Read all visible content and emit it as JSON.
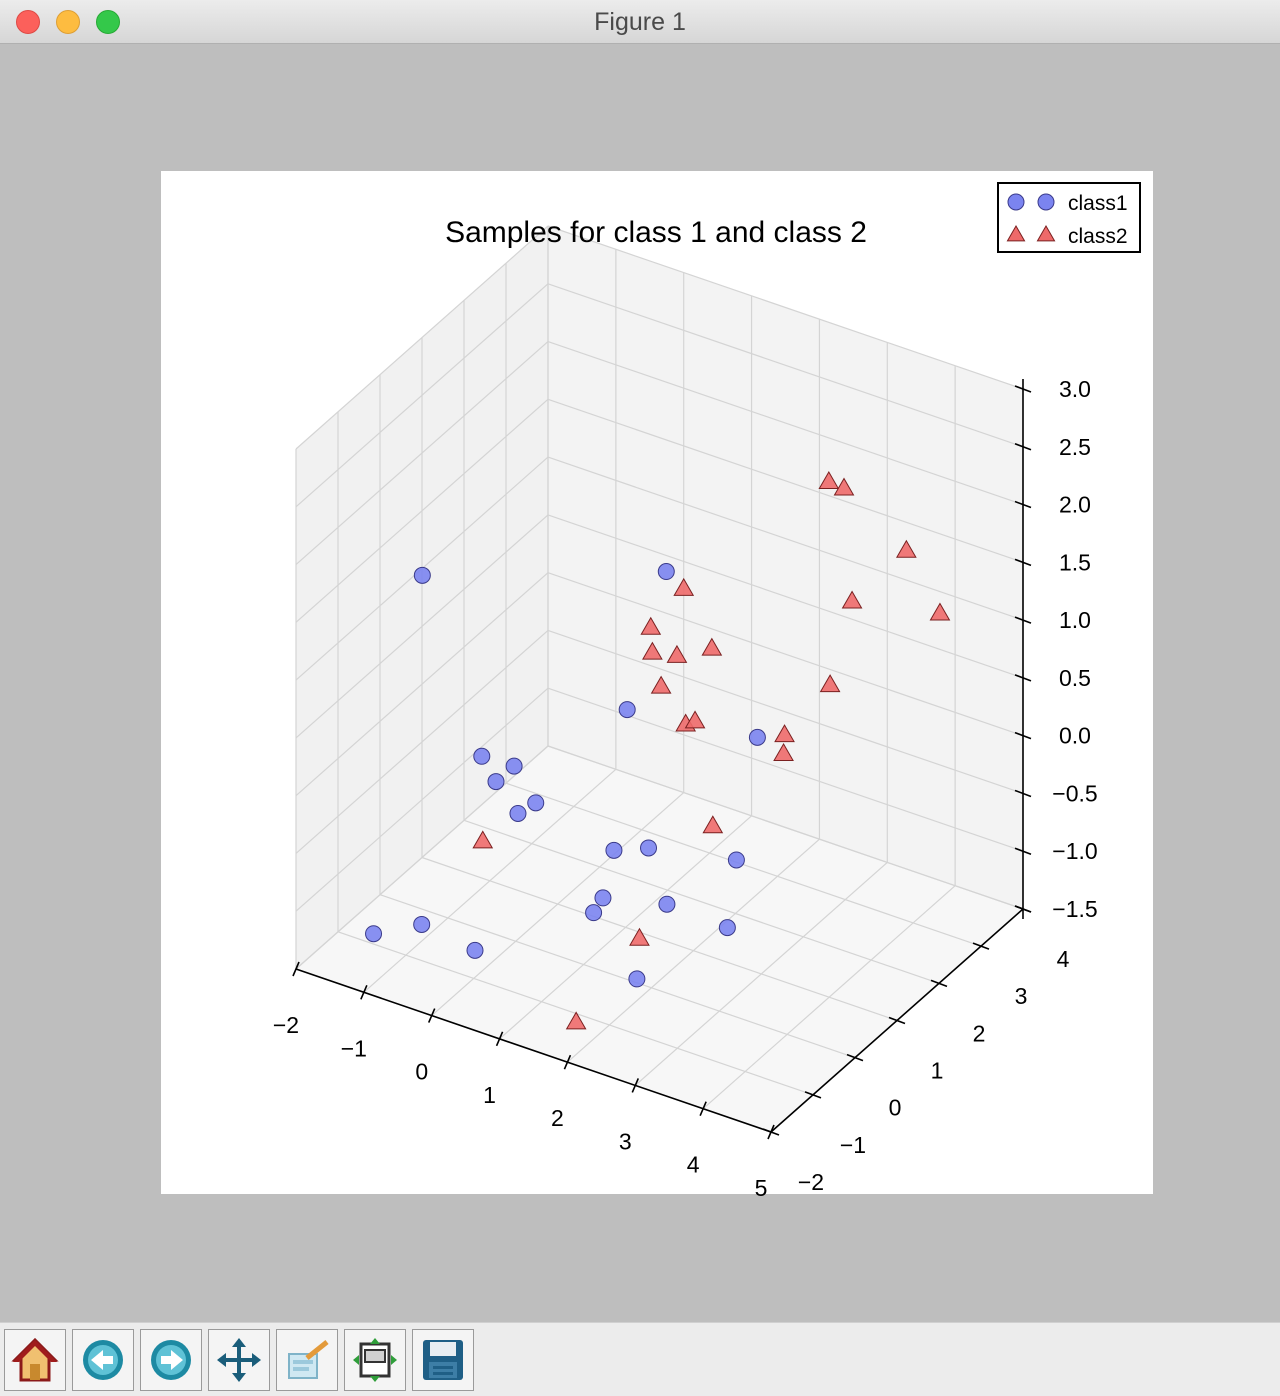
{
  "window": {
    "title": "Figure 1"
  },
  "toolbar": [
    {
      "name": "home-button",
      "icon": "home-icon"
    },
    {
      "name": "back-button",
      "icon": "back-arrow-icon"
    },
    {
      "name": "forward-button",
      "icon": "forward-arrow-icon"
    },
    {
      "name": "pan-button",
      "icon": "pan-arrows-icon"
    },
    {
      "name": "zoom-button",
      "icon": "zoom-rect-icon"
    },
    {
      "name": "subplots-button",
      "icon": "configure-subplots-icon"
    },
    {
      "name": "save-button",
      "icon": "save-floppy-icon"
    }
  ],
  "chart_data": {
    "type": "scatter",
    "title": "Samples for class 1 and class 2",
    "legend_position": "top-right",
    "grid": true,
    "xlim": [
      -2,
      5
    ],
    "ylim": [
      -2,
      4
    ],
    "zlim": [
      -1.5,
      3.0
    ],
    "x_ticks": [
      "−2",
      "−1",
      "0",
      "1",
      "2",
      "3",
      "4",
      "5"
    ],
    "y_ticks": [
      "−2",
      "−1",
      "0",
      "1",
      "2",
      "3",
      "4"
    ],
    "z_ticks": [
      "−1.5",
      "−1.0",
      "−0.5",
      "0.0",
      "0.5",
      "1.0",
      "1.5",
      "2.0",
      "2.5",
      "3.0"
    ],
    "series": [
      {
        "name": "class1",
        "marker": "circle",
        "color": "#7b84f0",
        "points": [
          [
            -1.5,
            0.2,
            1.3
          ],
          [
            -0.5,
            0.0,
            0.0
          ],
          [
            0.1,
            -0.2,
            0.1
          ],
          [
            -0.6,
            0.5,
            -0.4
          ],
          [
            -0.2,
            0.8,
            -0.6
          ],
          [
            -0.4,
            0.7,
            -0.7
          ],
          [
            0.9,
            1.2,
            0.3
          ],
          [
            1.2,
            0.4,
            -0.6
          ],
          [
            1.4,
            0.9,
            -0.7
          ],
          [
            2.2,
            1.7,
            -0.9
          ],
          [
            1.3,
            1.5,
            -1.4
          ],
          [
            2.5,
            1.0,
            -1.2
          ],
          [
            -1.6,
            -0.8,
            -1.5
          ],
          [
            -1.2,
            -0.3,
            -1.5
          ],
          [
            -0.6,
            0.0,
            -1.7
          ],
          [
            0.9,
            0.4,
            -1.2
          ],
          [
            1.1,
            0.3,
            -1.0
          ],
          [
            1.6,
            0.3,
            -1.6
          ],
          [
            2.2,
            2.2,
            0.0
          ],
          [
            1.6,
            1.0,
            1.7
          ]
        ]
      },
      {
        "name": "class2",
        "marker": "triangle",
        "color": "#ee6a6a",
        "points": [
          [
            3.5,
            1.8,
            2.6
          ],
          [
            3.6,
            2.0,
            2.5
          ],
          [
            3.9,
            3.0,
            1.7
          ],
          [
            3.1,
            3.0,
            1.1
          ],
          [
            3.9,
            3.8,
            0.9
          ],
          [
            2.9,
            2.8,
            0.4
          ],
          [
            2.4,
            2.5,
            -0.2
          ],
          [
            1.9,
            1.6,
            0.9
          ],
          [
            1.0,
            1.6,
            0.9
          ],
          [
            0.9,
            1.8,
            0.6
          ],
          [
            1.2,
            1.9,
            0.6
          ],
          [
            1.4,
            1.2,
            0.6
          ],
          [
            1.7,
            1.3,
            0.3
          ],
          [
            1.9,
            1.2,
            0.4
          ],
          [
            2.1,
            1.3,
            -0.5
          ],
          [
            -0.3,
            -0.3,
            -0.6
          ],
          [
            1.7,
            0.2,
            -1.2
          ],
          [
            1.2,
            -0.5,
            -1.8
          ],
          [
            1.3,
            1.9,
            1.2
          ],
          [
            2.6,
            2.2,
            0.1
          ]
        ]
      }
    ]
  }
}
